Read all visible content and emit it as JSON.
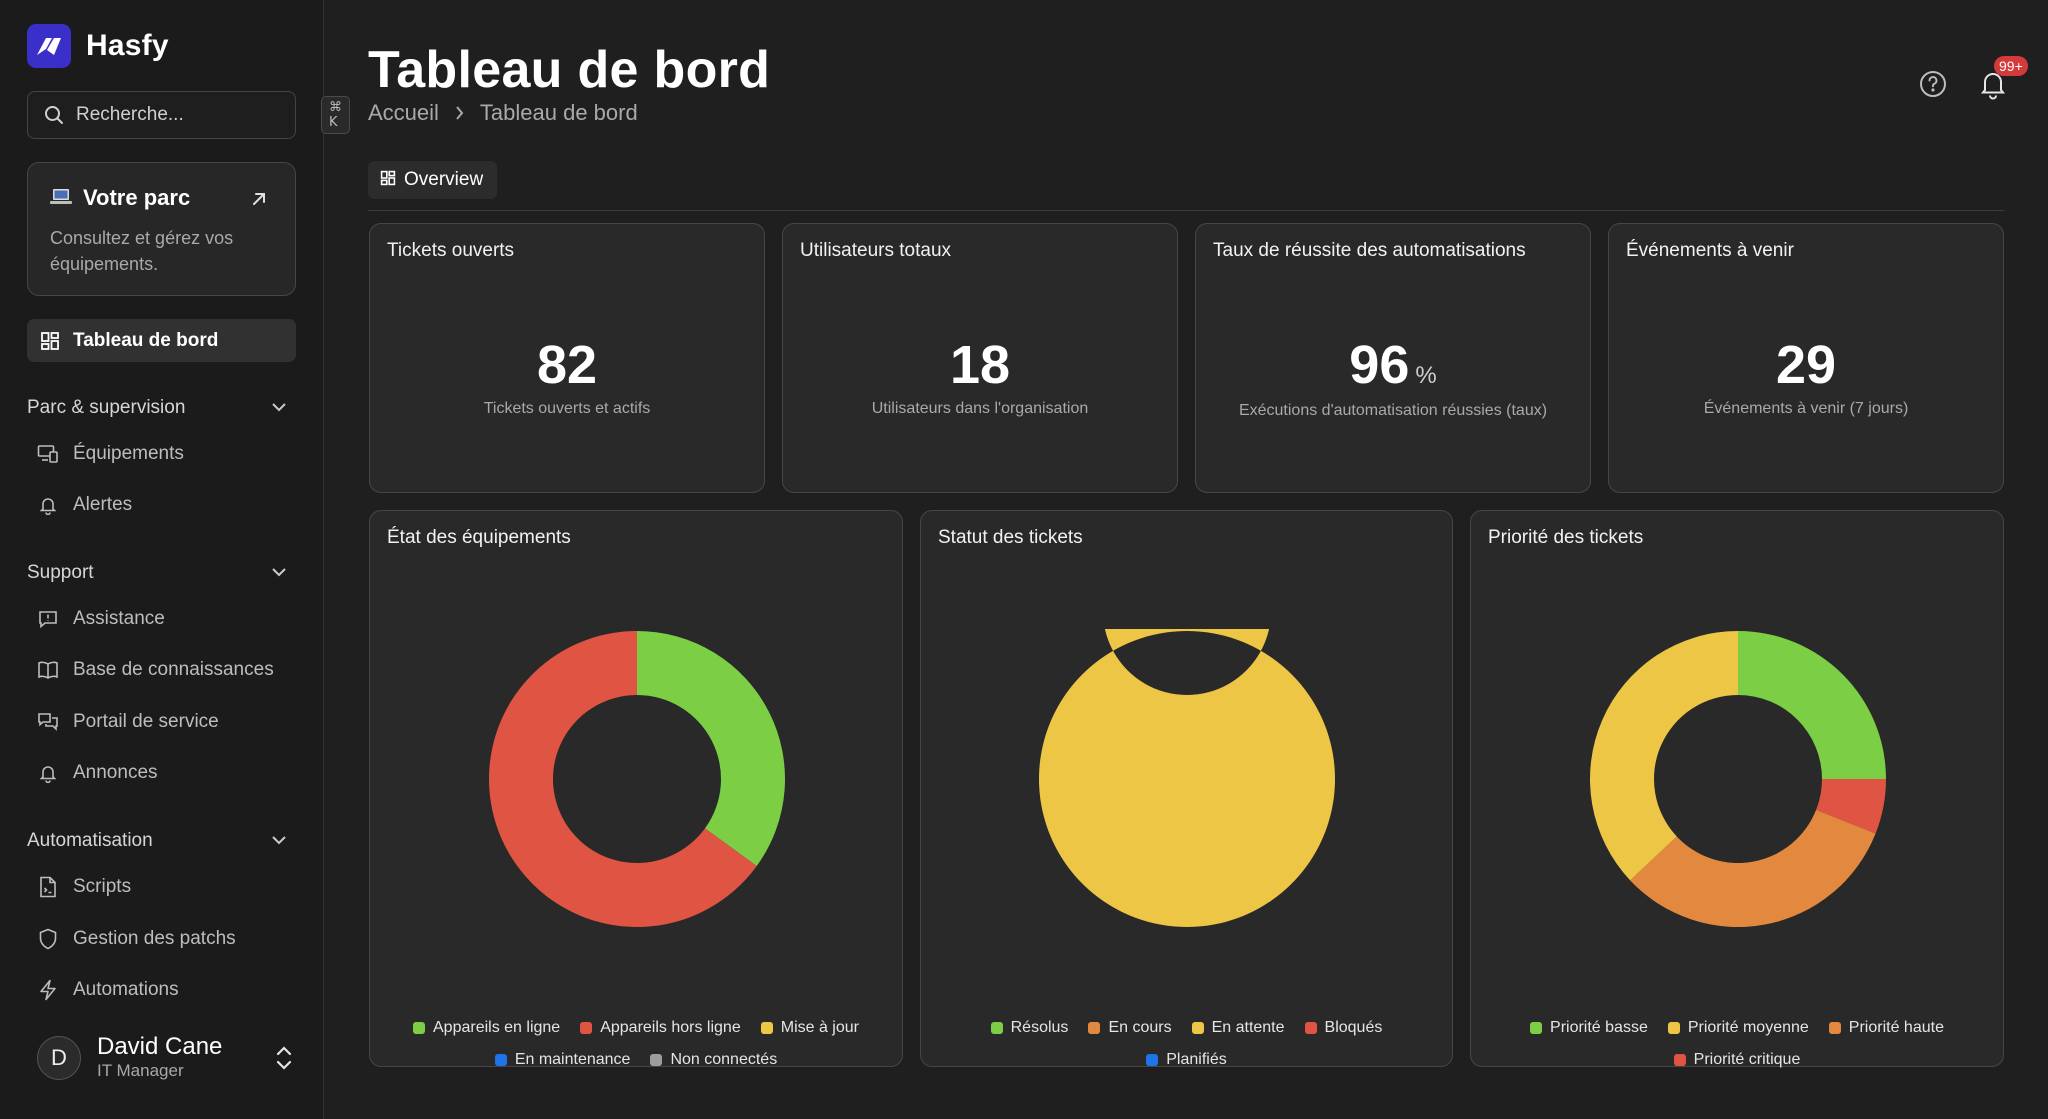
{
  "brand": {
    "name": "Hasfy"
  },
  "search": {
    "placeholder": "Recherche...",
    "shortcut": "⌘ K"
  },
  "promo": {
    "title": "Votre parc",
    "description": "Consultez et gérez vos équipements."
  },
  "nav": {
    "active": "Tableau de bord",
    "sections": [
      {
        "label": "Parc & supervision",
        "items": [
          "Équipements",
          "Alertes"
        ]
      },
      {
        "label": "Support",
        "items": [
          "Assistance",
          "Base de connaissances",
          "Portail de service",
          "Annonces"
        ]
      },
      {
        "label": "Automatisation",
        "items": [
          "Scripts",
          "Gestion des patchs",
          "Automations"
        ]
      }
    ]
  },
  "user": {
    "initial": "D",
    "name": "David Cane",
    "role": "IT Manager"
  },
  "header": {
    "title": "Tableau de bord",
    "breadcrumb": [
      "Accueil",
      "Tableau de bord"
    ],
    "notifications_badge": "99+"
  },
  "tabs": [
    {
      "label": "Overview"
    }
  ],
  "kpis": [
    {
      "title": "Tickets ouverts",
      "value": "82",
      "unit": "",
      "subtitle": "Tickets ouverts et actifs"
    },
    {
      "title": "Utilisateurs totaux",
      "value": "18",
      "unit": "",
      "subtitle": "Utilisateurs dans l'organisation"
    },
    {
      "title": "Taux de réussite des automatisations",
      "value": "96",
      "unit": "%",
      "subtitle": "Exécutions d'automatisation réussies (taux)"
    },
    {
      "title": "Événements à venir",
      "value": "29",
      "unit": "",
      "subtitle": "Événements à venir (7 jours)"
    }
  ],
  "colors": {
    "green": "#7ccf45",
    "red": "#e05444",
    "yellow": "#eec645",
    "orange": "#e3893f",
    "blue": "#1e74e8",
    "gray": "#9e9e9e"
  },
  "chart_data": [
    {
      "type": "pie",
      "title": "État des équipements",
      "categories": [
        "Appareils en ligne",
        "Appareils hors ligne",
        "Mise à jour",
        "En maintenance",
        "Non connectés"
      ],
      "values": [
        35,
        65,
        0,
        0,
        0
      ],
      "colors": [
        "#7ccf45",
        "#e05444",
        "#eec645",
        "#1e74e8",
        "#9e9e9e"
      ]
    },
    {
      "type": "pie",
      "title": "Statut des tickets",
      "categories": [
        "Résolus",
        "En cours",
        "En attente",
        "Bloqués",
        "Planifiés"
      ],
      "values": [
        0,
        0,
        100,
        0,
        0
      ],
      "colors": [
        "#7ccf45",
        "#e3893f",
        "#eec645",
        "#e05444",
        "#1e74e8"
      ]
    },
    {
      "type": "pie",
      "title": "Priorité des tickets",
      "categories": [
        "Priorité basse",
        "Priorité moyenne",
        "Priorité haute",
        "Priorité critique"
      ],
      "values": [
        25,
        37,
        32,
        6
      ],
      "order": [
        0,
        3,
        2,
        1
      ],
      "colors": [
        "#7ccf45",
        "#eec645",
        "#e3893f",
        "#e05444"
      ]
    }
  ]
}
